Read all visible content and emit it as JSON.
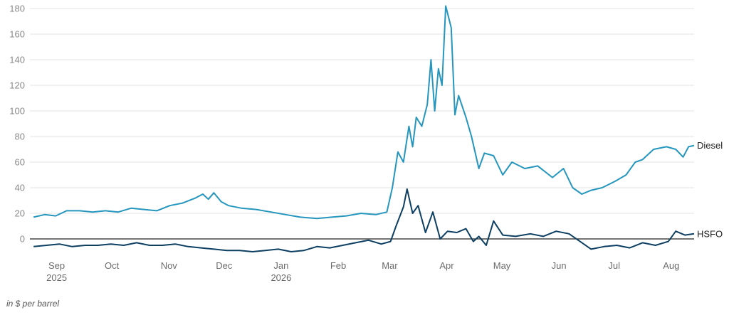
{
  "chart_data": {
    "type": "line",
    "note": "in $ per barrel",
    "ylim": [
      -15,
      185
    ],
    "yticks": [
      0,
      20,
      40,
      60,
      80,
      100,
      120,
      140,
      160,
      180
    ],
    "xlim": [
      "2025-08-19",
      "2026-08-15"
    ],
    "xticks": [
      {
        "date": "2025-09-01",
        "label": "Sep",
        "sublabel": "2025"
      },
      {
        "date": "2025-10-01",
        "label": "Oct",
        "sublabel": ""
      },
      {
        "date": "2025-11-01",
        "label": "Nov",
        "sublabel": ""
      },
      {
        "date": "2025-12-01",
        "label": "Dec",
        "sublabel": ""
      },
      {
        "date": "2026-01-01",
        "label": "Jan",
        "sublabel": "2026"
      },
      {
        "date": "2026-02-01",
        "label": "Feb",
        "sublabel": ""
      },
      {
        "date": "2026-03-01",
        "label": "Mar",
        "sublabel": ""
      },
      {
        "date": "2026-04-01",
        "label": "Apr",
        "sublabel": ""
      },
      {
        "date": "2026-05-01",
        "label": "May",
        "sublabel": ""
      },
      {
        "date": "2026-06-01",
        "label": "Jun",
        "sublabel": ""
      },
      {
        "date": "2026-07-01",
        "label": "Jul",
        "sublabel": ""
      },
      {
        "date": "2026-08-01",
        "label": "Aug",
        "sublabel": ""
      }
    ],
    "grid": true,
    "series": [
      {
        "name": "Diesel",
        "color": "#2596be",
        "points": [
          [
            "2025-08-21",
            17
          ],
          [
            "2025-08-27",
            19
          ],
          [
            "2025-09-02",
            18
          ],
          [
            "2025-09-08",
            22
          ],
          [
            "2025-09-15",
            22
          ],
          [
            "2025-09-22",
            21
          ],
          [
            "2025-09-29",
            22
          ],
          [
            "2025-10-06",
            21
          ],
          [
            "2025-10-13",
            24
          ],
          [
            "2025-10-20",
            23
          ],
          [
            "2025-10-27",
            22
          ],
          [
            "2025-11-03",
            26
          ],
          [
            "2025-11-10",
            28
          ],
          [
            "2025-11-17",
            32
          ],
          [
            "2025-11-21",
            35
          ],
          [
            "2025-11-24",
            31
          ],
          [
            "2025-11-27",
            36
          ],
          [
            "2025-12-01",
            29
          ],
          [
            "2025-12-05",
            26
          ],
          [
            "2025-12-12",
            24
          ],
          [
            "2025-12-20",
            23
          ],
          [
            "2025-12-28",
            21
          ],
          [
            "2026-01-05",
            19
          ],
          [
            "2026-01-13",
            17
          ],
          [
            "2026-01-22",
            16
          ],
          [
            "2026-01-30",
            17
          ],
          [
            "2026-02-07",
            18
          ],
          [
            "2026-02-15",
            20
          ],
          [
            "2026-02-23",
            19
          ],
          [
            "2026-03-01",
            21
          ],
          [
            "2026-03-04",
            40
          ],
          [
            "2026-03-07",
            68
          ],
          [
            "2026-03-10",
            60
          ],
          [
            "2026-03-13",
            88
          ],
          [
            "2026-03-15",
            72
          ],
          [
            "2026-03-17",
            95
          ],
          [
            "2026-03-20",
            88
          ],
          [
            "2026-03-23",
            105
          ],
          [
            "2026-03-25",
            140
          ],
          [
            "2026-03-27",
            100
          ],
          [
            "2026-03-29",
            133
          ],
          [
            "2026-03-31",
            120
          ],
          [
            "2026-04-02",
            182
          ],
          [
            "2026-04-05",
            165
          ],
          [
            "2026-04-07",
            97
          ],
          [
            "2026-04-09",
            112
          ],
          [
            "2026-04-13",
            95
          ],
          [
            "2026-04-16",
            80
          ],
          [
            "2026-04-20",
            55
          ],
          [
            "2026-04-23",
            67
          ],
          [
            "2026-04-28",
            65
          ],
          [
            "2026-05-03",
            50
          ],
          [
            "2026-05-08",
            60
          ],
          [
            "2026-05-15",
            55
          ],
          [
            "2026-05-22",
            57
          ],
          [
            "2026-05-30",
            48
          ],
          [
            "2026-06-05",
            55
          ],
          [
            "2026-06-10",
            40
          ],
          [
            "2026-06-15",
            35
          ],
          [
            "2026-06-20",
            38
          ],
          [
            "2026-06-26",
            40
          ],
          [
            "2026-07-03",
            45
          ],
          [
            "2026-07-09",
            50
          ],
          [
            "2026-07-14",
            60
          ],
          [
            "2026-07-18",
            62
          ],
          [
            "2026-07-24",
            70
          ],
          [
            "2026-07-31",
            72
          ],
          [
            "2026-08-05",
            70
          ],
          [
            "2026-08-09",
            64
          ],
          [
            "2026-08-12",
            72
          ],
          [
            "2026-08-15",
            73
          ]
        ]
      },
      {
        "name": "HSFO",
        "color": "#0d3f63",
        "points": [
          [
            "2025-08-21",
            -6
          ],
          [
            "2025-08-28",
            -5
          ],
          [
            "2025-09-04",
            -4
          ],
          [
            "2025-09-11",
            -6
          ],
          [
            "2025-09-18",
            -5
          ],
          [
            "2025-09-25",
            -5
          ],
          [
            "2025-10-02",
            -4
          ],
          [
            "2025-10-09",
            -5
          ],
          [
            "2025-10-16",
            -3
          ],
          [
            "2025-10-23",
            -5
          ],
          [
            "2025-10-30",
            -5
          ],
          [
            "2025-11-06",
            -4
          ],
          [
            "2025-11-13",
            -6
          ],
          [
            "2025-11-20",
            -7
          ],
          [
            "2025-11-27",
            -8
          ],
          [
            "2025-12-04",
            -9
          ],
          [
            "2025-12-11",
            -9
          ],
          [
            "2025-12-18",
            -10
          ],
          [
            "2025-12-25",
            -9
          ],
          [
            "2026-01-01",
            -8
          ],
          [
            "2026-01-08",
            -10
          ],
          [
            "2026-01-15",
            -9
          ],
          [
            "2026-01-22",
            -6
          ],
          [
            "2026-01-29",
            -7
          ],
          [
            "2026-02-05",
            -5
          ],
          [
            "2026-02-12",
            -3
          ],
          [
            "2026-02-19",
            -1
          ],
          [
            "2026-02-26",
            -4
          ],
          [
            "2026-03-03",
            -2
          ],
          [
            "2026-03-06",
            10
          ],
          [
            "2026-03-10",
            25
          ],
          [
            "2026-03-12",
            39
          ],
          [
            "2026-03-15",
            20
          ],
          [
            "2026-03-18",
            26
          ],
          [
            "2026-03-22",
            5
          ],
          [
            "2026-03-26",
            21
          ],
          [
            "2026-03-30",
            0
          ],
          [
            "2026-04-03",
            6
          ],
          [
            "2026-04-08",
            5
          ],
          [
            "2026-04-13",
            8
          ],
          [
            "2026-04-17",
            -2
          ],
          [
            "2026-04-20",
            2
          ],
          [
            "2026-04-24",
            -5
          ],
          [
            "2026-04-28",
            14
          ],
          [
            "2026-05-03",
            3
          ],
          [
            "2026-05-10",
            2
          ],
          [
            "2026-05-18",
            4
          ],
          [
            "2026-05-25",
            2
          ],
          [
            "2026-06-01",
            6
          ],
          [
            "2026-06-08",
            4
          ],
          [
            "2026-06-14",
            -2
          ],
          [
            "2026-06-20",
            -8
          ],
          [
            "2026-06-27",
            -6
          ],
          [
            "2026-07-04",
            -5
          ],
          [
            "2026-07-11",
            -7
          ],
          [
            "2026-07-18",
            -3
          ],
          [
            "2026-07-25",
            -5
          ],
          [
            "2026-08-01",
            -2
          ],
          [
            "2026-08-05",
            6
          ],
          [
            "2026-08-10",
            3
          ],
          [
            "2026-08-15",
            4
          ]
        ]
      }
    ]
  }
}
